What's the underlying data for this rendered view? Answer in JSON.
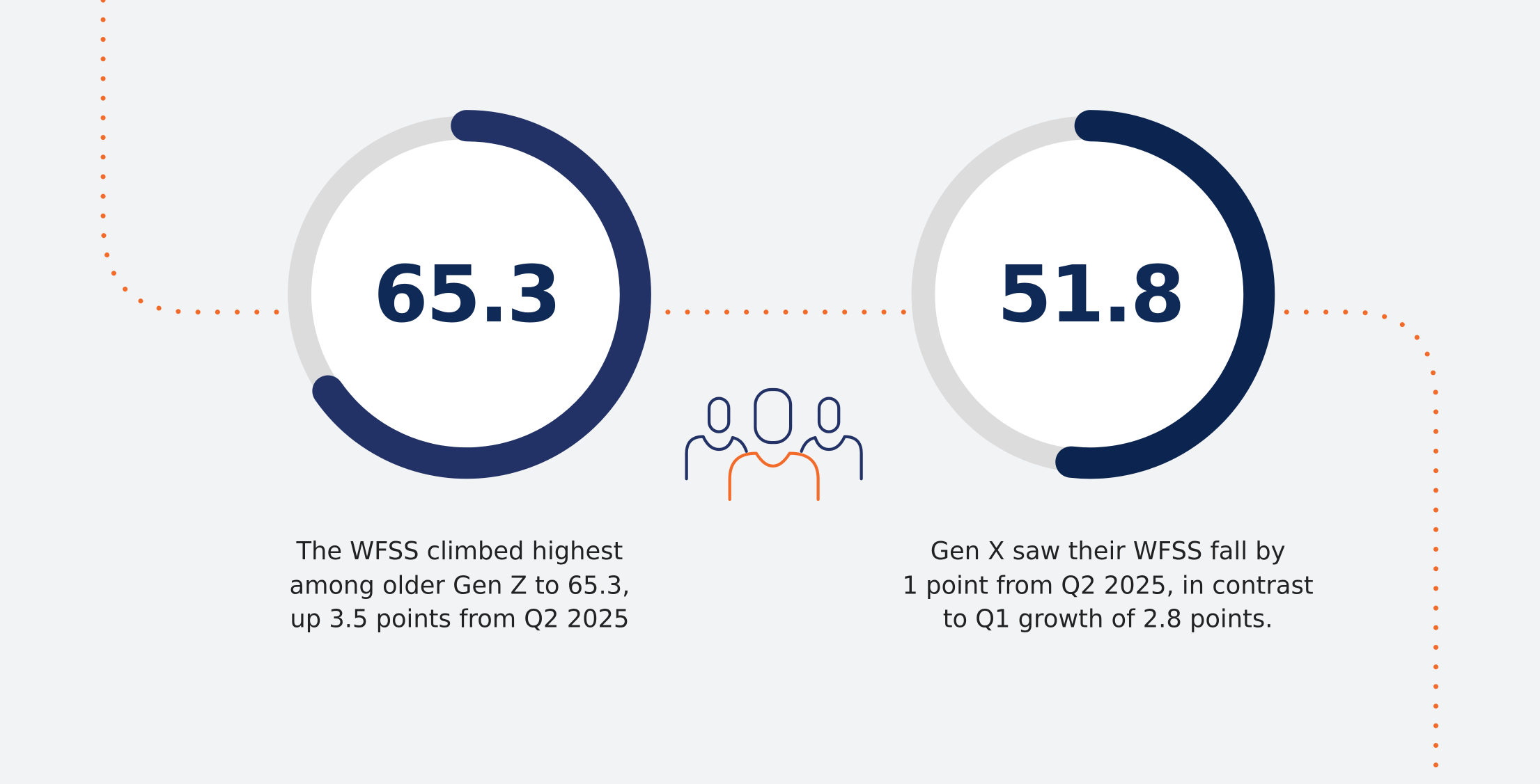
{
  "chart_data": {
    "type": "gauge",
    "ylim": [
      0,
      100
    ],
    "values": [
      65.3,
      51.8
    ],
    "colors": [
      "#233266",
      "#0b2550"
    ],
    "annotations": [
      [
        "The WFSS climbed highest",
        "among older Gen Z to 65.3,",
        "up 3.5 points from Q2 2025"
      ],
      [
        "Gen X saw their WFSS fall by",
        "1 point from Q2 2025, in contrast",
        "to Q1 growth of 2.8 points."
      ]
    ]
  }
}
